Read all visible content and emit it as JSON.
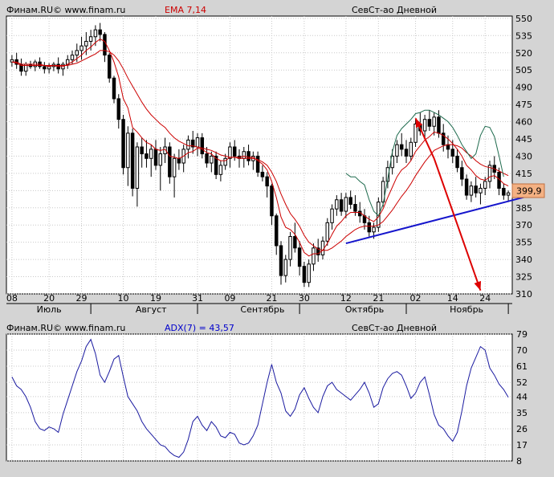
{
  "colors": {
    "background": "#d4d4d4",
    "plot_bg": "#ffffff",
    "grid": "#c8c8c8",
    "candle": "#000000",
    "ema_slow": "#cc0000",
    "ema_fast": "#cc0000",
    "envelope": "#1f6b4e",
    "trendline": "#1515cc",
    "arrow": "#dd0000",
    "adx": "#1a1aa0",
    "price_tag_bg": "#f4b183",
    "price_tag_border": "#c07040",
    "label_red": "#cc0000",
    "label_blue": "#0000cc"
  },
  "chart_data": [
    {
      "type": "candlestick",
      "header": {
        "source": "Финам.RU© www.finam.ru",
        "indicator": "EMA 7,14",
        "instrument": "СевСт-ао Дневной"
      },
      "y_ticks": [
        550,
        535,
        520,
        505,
        490,
        475,
        460,
        445,
        430,
        415,
        400,
        385,
        370,
        355,
        340,
        325,
        310
      ],
      "ylim": [
        310,
        552
      ],
      "last_price_label": "399,9",
      "last_price": 399.9,
      "x_day_ticks": [
        {
          "label": "08",
          "i": 0
        },
        {
          "label": "20",
          "i": 8
        },
        {
          "label": "29",
          "i": 15
        },
        {
          "label": "10",
          "i": 24
        },
        {
          "label": "19",
          "i": 31
        },
        {
          "label": "31",
          "i": 40
        },
        {
          "label": "09",
          "i": 47
        },
        {
          "label": "21",
          "i": 56
        },
        {
          "label": "30",
          "i": 63
        },
        {
          "label": "12",
          "i": 72
        },
        {
          "label": "21",
          "i": 79
        },
        {
          "label": "02",
          "i": 87
        },
        {
          "label": "14",
          "i": 95
        },
        {
          "label": "24",
          "i": 102
        }
      ],
      "month_labels": [
        {
          "label": "Июль",
          "i": 8
        },
        {
          "label": "Август",
          "i": 30
        },
        {
          "label": "Сентябрь",
          "i": 54
        },
        {
          "label": "Октябрь",
          "i": 76
        },
        {
          "label": "Ноябрь",
          "i": 98
        }
      ],
      "month_separators": [
        17,
        40,
        62,
        85,
        107
      ],
      "candles": [
        [
          512,
          518,
          508,
          514
        ],
        [
          514,
          520,
          506,
          510
        ],
        [
          510,
          515,
          500,
          504
        ],
        [
          504,
          512,
          500,
          510
        ],
        [
          510,
          513,
          506,
          508
        ],
        [
          508,
          514,
          504,
          512
        ],
        [
          512,
          516,
          506,
          508
        ],
        [
          508,
          512,
          502,
          506
        ],
        [
          506,
          511,
          502,
          508
        ],
        [
          508,
          512,
          504,
          510
        ],
        [
          510,
          516,
          502,
          506
        ],
        [
          506,
          512,
          500,
          510
        ],
        [
          510,
          518,
          506,
          514
        ],
        [
          514,
          522,
          510,
          518
        ],
        [
          518,
          528,
          512,
          522
        ],
        [
          522,
          534,
          514,
          526
        ],
        [
          526,
          538,
          518,
          530
        ],
        [
          530,
          540,
          522,
          534
        ],
        [
          534,
          544,
          526,
          540
        ],
        [
          540,
          546,
          530,
          536
        ],
        [
          536,
          538,
          512,
          518
        ],
        [
          518,
          520,
          494,
          498
        ],
        [
          498,
          500,
          476,
          480
        ],
        [
          480,
          484,
          454,
          462
        ],
        [
          462,
          466,
          414,
          420
        ],
        [
          420,
          456,
          404,
          450
        ],
        [
          450,
          454,
          395,
          402
        ],
        [
          402,
          442,
          386,
          438
        ],
        [
          438,
          446,
          420,
          432
        ],
        [
          432,
          444,
          420,
          428
        ],
        [
          428,
          440,
          412,
          436
        ],
        [
          436,
          444,
          418,
          422
        ],
        [
          422,
          438,
          400,
          432
        ],
        [
          432,
          446,
          424,
          438
        ],
        [
          438,
          442,
          406,
          412
        ],
        [
          412,
          432,
          394,
          428
        ],
        [
          428,
          436,
          418,
          424
        ],
        [
          424,
          440,
          416,
          436
        ],
        [
          436,
          448,
          428,
          444
        ],
        [
          444,
          452,
          432,
          438
        ],
        [
          438,
          450,
          430,
          446
        ],
        [
          446,
          450,
          428,
          432
        ],
        [
          432,
          438,
          420,
          424
        ],
        [
          424,
          434,
          416,
          430
        ],
        [
          430,
          434,
          410,
          414
        ],
        [
          414,
          426,
          408,
          422
        ],
        [
          422,
          432,
          418,
          428
        ],
        [
          428,
          442,
          420,
          438
        ],
        [
          438,
          444,
          426,
          430
        ],
        [
          430,
          436,
          420,
          428
        ],
        [
          428,
          438,
          420,
          434
        ],
        [
          434,
          440,
          422,
          426
        ],
        [
          426,
          434,
          418,
          430
        ],
        [
          430,
          434,
          412,
          416
        ],
        [
          416,
          422,
          408,
          412
        ],
        [
          412,
          416,
          394,
          404
        ],
        [
          404,
          406,
          370,
          378
        ],
        [
          378,
          380,
          344,
          352
        ],
        [
          352,
          356,
          318,
          326
        ],
        [
          326,
          344,
          320,
          340
        ],
        [
          340,
          364,
          334,
          360
        ],
        [
          360,
          372,
          346,
          350
        ],
        [
          350,
          356,
          326,
          334
        ],
        [
          334,
          338,
          316,
          320
        ],
        [
          320,
          340,
          316,
          336
        ],
        [
          336,
          354,
          330,
          350
        ],
        [
          350,
          358,
          338,
          344
        ],
        [
          344,
          360,
          340,
          356
        ],
        [
          356,
          376,
          352,
          372
        ],
        [
          372,
          388,
          366,
          384
        ],
        [
          384,
          396,
          378,
          392
        ],
        [
          392,
          398,
          378,
          382
        ],
        [
          382,
          398,
          376,
          394
        ],
        [
          394,
          400,
          384,
          388
        ],
        [
          388,
          396,
          378,
          382
        ],
        [
          382,
          390,
          372,
          378
        ],
        [
          378,
          384,
          366,
          372
        ],
        [
          372,
          378,
          360,
          364
        ],
        [
          364,
          372,
          358,
          368
        ],
        [
          368,
          394,
          364,
          390
        ],
        [
          390,
          412,
          386,
          408
        ],
        [
          408,
          426,
          402,
          420
        ],
        [
          420,
          436,
          414,
          430
        ],
        [
          430,
          444,
          424,
          440
        ],
        [
          440,
          450,
          430,
          436
        ],
        [
          436,
          444,
          424,
          430
        ],
        [
          430,
          446,
          426,
          442
        ],
        [
          442,
          462,
          438,
          458
        ],
        [
          458,
          468,
          448,
          452
        ],
        [
          452,
          466,
          446,
          462
        ],
        [
          462,
          470,
          452,
          456
        ],
        [
          456,
          468,
          448,
          464
        ],
        [
          464,
          470,
          446,
          450
        ],
        [
          450,
          458,
          434,
          440
        ],
        [
          440,
          448,
          428,
          436
        ],
        [
          436,
          444,
          424,
          430
        ],
        [
          430,
          436,
          416,
          420
        ],
        [
          420,
          426,
          404,
          410
        ],
        [
          410,
          414,
          392,
          396
        ],
        [
          396,
          408,
          390,
          404
        ],
        [
          404,
          412,
          394,
          398
        ],
        [
          398,
          406,
          388,
          402
        ],
        [
          402,
          412,
          396,
          408
        ],
        [
          408,
          426,
          402,
          422
        ],
        [
          422,
          430,
          410,
          416
        ],
        [
          416,
          420,
          396,
          402
        ],
        [
          402,
          406,
          392,
          396
        ],
        [
          396,
          400,
          390,
          398
        ]
      ],
      "series": [
        {
          "role": "ema_fast",
          "values": [
            512,
            511,
            509,
            509,
            509,
            509,
            509,
            509,
            508,
            509,
            508,
            508,
            510,
            512,
            515,
            518,
            522,
            525,
            529,
            532,
            530,
            522,
            512,
            499,
            480,
            472,
            455,
            451,
            446,
            442,
            440,
            436,
            435,
            436,
            430,
            429,
            428,
            430,
            433,
            434,
            437,
            436,
            433,
            432,
            428,
            426,
            426,
            429,
            429,
            429,
            430,
            429,
            429,
            426,
            423,
            418,
            408,
            394,
            377,
            368,
            366,
            362,
            355,
            346,
            343,
            345,
            345,
            348,
            354,
            362,
            369,
            373,
            378,
            381,
            381,
            381,
            378,
            375,
            373,
            377,
            384,
            394,
            403,
            412,
            418,
            421,
            426,
            434,
            439,
            444,
            447,
            451,
            450,
            448,
            445,
            441,
            436,
            430,
            422,
            418,
            413,
            410,
            409,
            412,
            413,
            410,
            406,
            404
          ]
        },
        {
          "role": "ema_slow",
          "values": [
            512,
            512,
            510,
            510,
            510,
            510,
            510,
            509,
            509,
            509,
            509,
            509,
            509,
            510,
            511,
            513,
            515,
            517,
            519,
            522,
            522,
            521,
            518,
            513,
            506,
            498,
            491,
            484,
            477,
            471,
            466,
            462,
            458,
            455,
            450,
            446,
            443,
            441,
            439,
            439,
            438,
            437,
            436,
            435,
            433,
            431,
            430,
            429,
            429,
            428,
            428,
            428,
            428,
            427,
            425,
            422,
            416,
            408,
            397,
            388,
            380,
            375,
            369,
            361,
            355,
            352,
            349,
            348,
            348,
            350,
            353,
            356,
            360,
            363,
            366,
            368,
            369,
            369,
            369,
            370,
            373,
            378,
            383,
            389,
            395,
            400,
            406,
            413,
            419,
            425,
            430,
            435,
            437,
            439,
            440,
            440,
            439,
            437,
            433,
            430,
            426,
            423,
            421,
            420,
            419,
            417,
            415,
            413
          ]
        },
        {
          "role": "envelope",
          "values": [
            null,
            null,
            null,
            null,
            null,
            null,
            null,
            null,
            null,
            null,
            null,
            null,
            null,
            null,
            null,
            null,
            null,
            null,
            null,
            null,
            null,
            null,
            null,
            null,
            null,
            null,
            null,
            null,
            null,
            null,
            null,
            null,
            null,
            null,
            null,
            null,
            null,
            null,
            null,
            null,
            null,
            null,
            null,
            null,
            null,
            null,
            null,
            null,
            null,
            null,
            null,
            null,
            null,
            null,
            null,
            null,
            null,
            null,
            null,
            null,
            null,
            null,
            null,
            null,
            null,
            null,
            null,
            null,
            null,
            null,
            null,
            null,
            415,
            412,
            412,
            408,
            405,
            392,
            382,
            378,
            388,
            410,
            434,
            448,
            454,
            458,
            462,
            467,
            468,
            470,
            470,
            468,
            466,
            463,
            460,
            455,
            448,
            440,
            434,
            428,
            432,
            448,
            456,
            455,
            447,
            430,
            412
          ]
        }
      ],
      "trendline": {
        "from": {
          "i": 72,
          "v": 354
        },
        "to": {
          "i": 113,
          "v": 397
        }
      },
      "arrow_up": {
        "from": {
          "i": 91,
          "v": 428
        },
        "to": {
          "i": 87,
          "v": 463
        }
      },
      "arrow_down": {
        "from": {
          "i": 91,
          "v": 428
        },
        "to": {
          "i": 101,
          "v": 313
        }
      }
    },
    {
      "type": "line",
      "header": {
        "source": "Финам.RU© www.finam.ru",
        "indicator": "ADX(7) = 43,57",
        "instrument": "СевСт-ао Дневной"
      },
      "y_ticks": [
        79,
        70,
        61,
        52,
        44,
        35,
        26,
        17,
        8
      ],
      "ylim": [
        8,
        79
      ],
      "series": [
        {
          "name": "ADX(7)",
          "values": [
            55,
            50,
            48,
            44,
            38,
            30,
            26,
            25,
            27,
            26,
            24,
            34,
            42,
            50,
            58,
            64,
            72,
            76,
            68,
            56,
            52,
            58,
            65,
            67,
            55,
            44,
            40,
            36,
            30,
            26,
            23,
            20,
            17,
            16,
            13,
            11,
            10,
            13,
            20,
            30,
            33,
            28,
            25,
            30,
            27,
            22,
            21,
            24,
            23,
            18,
            17,
            18,
            22,
            28,
            40,
            52,
            62,
            52,
            46,
            36,
            33,
            37,
            45,
            49,
            43,
            38,
            35,
            44,
            50,
            52,
            48,
            46,
            44,
            42,
            45,
            48,
            52,
            46,
            38,
            40,
            49,
            54,
            57,
            58,
            56,
            50,
            43,
            46,
            52,
            55,
            45,
            34,
            28,
            26,
            22,
            19,
            24,
            36,
            50,
            60,
            66,
            72,
            70,
            60,
            56,
            51,
            48,
            43.57
          ]
        }
      ]
    }
  ]
}
